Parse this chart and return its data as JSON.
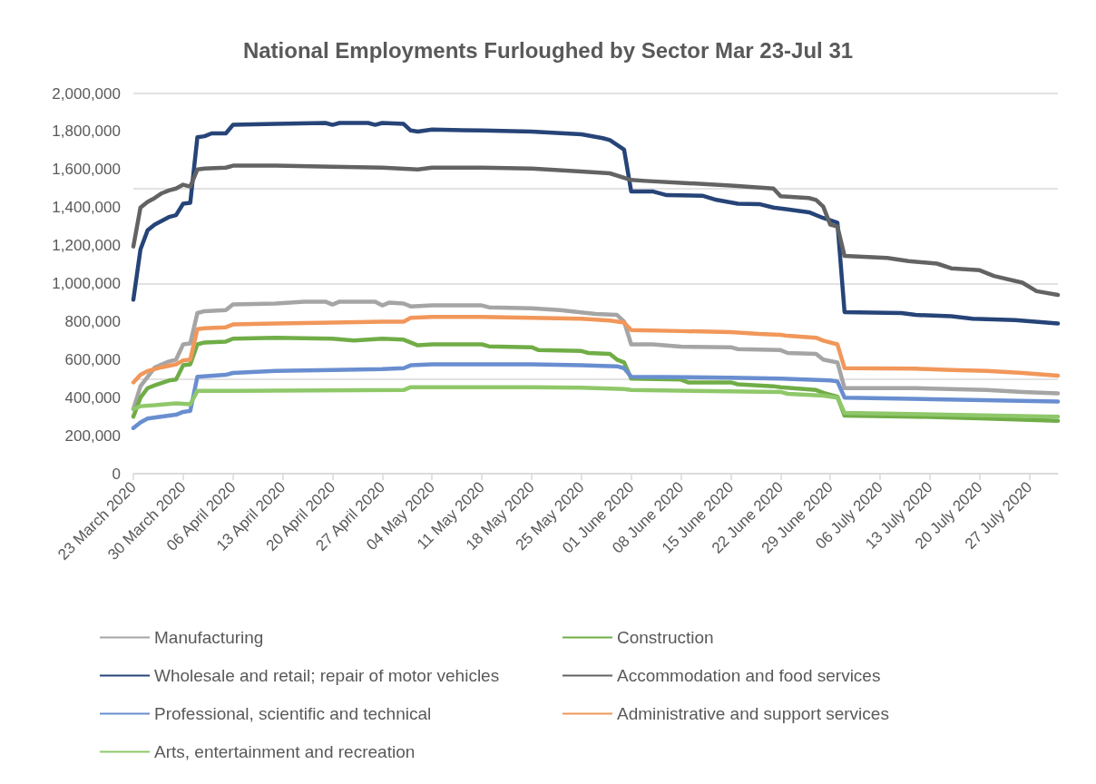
{
  "chart_data": {
    "type": "line",
    "title": "National Employments Furloughed by Sector Mar 23-Jul 31",
    "xlim": [
      "2020-03-23",
      "2020-07-31"
    ],
    "xticks": [
      {
        "value": "2020-03-23",
        "label": "23 March 2020"
      },
      {
        "value": "2020-03-30",
        "label": "30 March 2020"
      },
      {
        "value": "2020-04-06",
        "label": "06 April 2020"
      },
      {
        "value": "2020-04-13",
        "label": "13 April 2020"
      },
      {
        "value": "2020-04-20",
        "label": "20 April 2020"
      },
      {
        "value": "2020-04-27",
        "label": "27 April 2020"
      },
      {
        "value": "2020-05-04",
        "label": "04 May 2020"
      },
      {
        "value": "2020-05-11",
        "label": "11 May 2020"
      },
      {
        "value": "2020-05-18",
        "label": "18 May 2020"
      },
      {
        "value": "2020-05-25",
        "label": "25 May 2020"
      },
      {
        "value": "2020-06-01",
        "label": "01 June 2020"
      },
      {
        "value": "2020-06-08",
        "label": "08 June 2020"
      },
      {
        "value": "2020-06-15",
        "label": "15 June 2020"
      },
      {
        "value": "2020-06-22",
        "label": "22 June 2020"
      },
      {
        "value": "2020-06-29",
        "label": "29 June 2020"
      },
      {
        "value": "2020-07-06",
        "label": "06 July 2020"
      },
      {
        "value": "2020-07-13",
        "label": "13 July 2020"
      },
      {
        "value": "2020-07-20",
        "label": "20 July 2020"
      },
      {
        "value": "2020-07-27",
        "label": "27 July 2020"
      }
    ],
    "ylim": [
      0,
      2000000
    ],
    "yticks": [
      0,
      {
        "value": 200000,
        "label": "200,000"
      },
      {
        "value": 400000,
        "label": "400,000"
      },
      {
        "value": 600000,
        "label": "600,000"
      },
      {
        "value": 800000,
        "label": "800,000"
      },
      {
        "value": 1000000,
        "label": "1,000,000"
      },
      {
        "value": 1200000,
        "label": "1,200,000"
      },
      {
        "value": 1400000,
        "label": "1,400,000"
      },
      {
        "value": 1600000,
        "label": "1,600,000"
      },
      {
        "value": 1800000,
        "label": "1,800,000"
      },
      {
        "value": 2000000,
        "label": "2,000,000"
      }
    ],
    "grid": "y",
    "legend": "bottom",
    "marker": "none",
    "line_style": "solid",
    "series": [
      {
        "name": "Manufacturing",
        "color": "#a5a5a5",
        "x": [
          "2020-03-23",
          "2020-03-24",
          "2020-03-26",
          "2020-03-27",
          "2020-03-28",
          "2020-03-29",
          "2020-03-30",
          "2020-03-31",
          "2020-04-01",
          "2020-04-02",
          "2020-04-05",
          "2020-04-06",
          "2020-04-12",
          "2020-04-16",
          "2020-04-19",
          "2020-04-20",
          "2020-04-21",
          "2020-04-26",
          "2020-04-27",
          "2020-04-28",
          "2020-04-30",
          "2020-05-01",
          "2020-05-04",
          "2020-05-11",
          "2020-05-12",
          "2020-05-18",
          "2020-05-22",
          "2020-05-27",
          "2020-05-30",
          "2020-05-31",
          "2020-06-01",
          "2020-06-04",
          "2020-06-08",
          "2020-06-15",
          "2020-06-16",
          "2020-06-22",
          "2020-06-23",
          "2020-06-27",
          "2020-06-28",
          "2020-06-30",
          "2020-07-01",
          "2020-07-11",
          "2020-07-21",
          "2020-07-26",
          "2020-07-31"
        ],
        "values": [
          340000,
          460000,
          558000,
          575000,
          590000,
          600000,
          680000,
          685000,
          845000,
          855000,
          860000,
          890000,
          895000,
          905000,
          905000,
          890000,
          905000,
          905000,
          885000,
          900000,
          895000,
          880000,
          885000,
          885000,
          875000,
          870000,
          860000,
          840000,
          835000,
          800000,
          680000,
          680000,
          668000,
          665000,
          655000,
          650000,
          635000,
          630000,
          600000,
          585000,
          450000,
          450000,
          440000,
          430000,
          422000
        ]
      },
      {
        "name": "Construction",
        "color": "#70ad47",
        "x": [
          "2020-03-23",
          "2020-03-24",
          "2020-03-25",
          "2020-03-26",
          "2020-03-28",
          "2020-03-29",
          "2020-03-30",
          "2020-03-31",
          "2020-04-01",
          "2020-04-02",
          "2020-04-05",
          "2020-04-06",
          "2020-04-12",
          "2020-04-20",
          "2020-04-23",
          "2020-04-27",
          "2020-04-30",
          "2020-05-02",
          "2020-05-04",
          "2020-05-11",
          "2020-05-12",
          "2020-05-18",
          "2020-05-19",
          "2020-05-25",
          "2020-05-26",
          "2020-05-29",
          "2020-05-30",
          "2020-05-31",
          "2020-06-01",
          "2020-06-08",
          "2020-06-09",
          "2020-06-15",
          "2020-06-16",
          "2020-06-21",
          "2020-06-22",
          "2020-06-27",
          "2020-06-28",
          "2020-06-30",
          "2020-07-01",
          "2020-07-11",
          "2020-07-21",
          "2020-07-31"
        ],
        "values": [
          300000,
          400000,
          450000,
          465000,
          490000,
          495000,
          570000,
          575000,
          680000,
          690000,
          695000,
          710000,
          715000,
          710000,
          700000,
          710000,
          705000,
          675000,
          680000,
          680000,
          670000,
          665000,
          650000,
          645000,
          635000,
          630000,
          600000,
          585000,
          500000,
          495000,
          480000,
          480000,
          470000,
          460000,
          455000,
          440000,
          425000,
          405000,
          305000,
          300000,
          290000,
          278000
        ]
      },
      {
        "name": "Wholesale and retail; repair of motor vehicles",
        "color": "#264478",
        "x": [
          "2020-03-23",
          "2020-03-24",
          "2020-03-25",
          "2020-03-26",
          "2020-03-28",
          "2020-03-29",
          "2020-03-30",
          "2020-03-31",
          "2020-04-01",
          "2020-04-02",
          "2020-04-03",
          "2020-04-05",
          "2020-04-06",
          "2020-04-12",
          "2020-04-19",
          "2020-04-20",
          "2020-04-21",
          "2020-04-25",
          "2020-04-26",
          "2020-04-27",
          "2020-04-30",
          "2020-05-01",
          "2020-05-02",
          "2020-05-04",
          "2020-05-11",
          "2020-05-18",
          "2020-05-25",
          "2020-05-28",
          "2020-05-29",
          "2020-05-31",
          "2020-06-01",
          "2020-06-04",
          "2020-06-06",
          "2020-06-11",
          "2020-06-13",
          "2020-06-16",
          "2020-06-19",
          "2020-06-21",
          "2020-06-23",
          "2020-06-26",
          "2020-06-28",
          "2020-06-30",
          "2020-07-01",
          "2020-07-09",
          "2020-07-11",
          "2020-07-16",
          "2020-07-19",
          "2020-07-25",
          "2020-07-31"
        ],
        "values": [
          915000,
          1180000,
          1280000,
          1310000,
          1350000,
          1360000,
          1420000,
          1425000,
          1770000,
          1775000,
          1790000,
          1790000,
          1835000,
          1840000,
          1845000,
          1835000,
          1845000,
          1845000,
          1835000,
          1845000,
          1840000,
          1805000,
          1800000,
          1810000,
          1805000,
          1800000,
          1785000,
          1765000,
          1755000,
          1705000,
          1485000,
          1485000,
          1465000,
          1462000,
          1440000,
          1420000,
          1418000,
          1400000,
          1390000,
          1375000,
          1345000,
          1320000,
          850000,
          845000,
          835000,
          828000,
          815000,
          808000,
          790000
        ]
      },
      {
        "name": "Accommodation and food services",
        "color": "#636363",
        "x": [
          "2020-03-23",
          "2020-03-24",
          "2020-03-25",
          "2020-03-26",
          "2020-03-27",
          "2020-03-28",
          "2020-03-29",
          "2020-03-30",
          "2020-03-31",
          "2020-04-01",
          "2020-04-02",
          "2020-04-05",
          "2020-04-06",
          "2020-04-12",
          "2020-04-20",
          "2020-04-27",
          "2020-05-02",
          "2020-05-04",
          "2020-05-11",
          "2020-05-18",
          "2020-05-25",
          "2020-05-29",
          "2020-06-01",
          "2020-06-03",
          "2020-06-08",
          "2020-06-15",
          "2020-06-21",
          "2020-06-22",
          "2020-06-26",
          "2020-06-27",
          "2020-06-28",
          "2020-06-29",
          "2020-06-30",
          "2020-07-01",
          "2020-07-07",
          "2020-07-10",
          "2020-07-14",
          "2020-07-16",
          "2020-07-20",
          "2020-07-22",
          "2020-07-26",
          "2020-07-28",
          "2020-07-31"
        ],
        "values": [
          1195000,
          1400000,
          1430000,
          1450000,
          1475000,
          1490000,
          1500000,
          1520000,
          1510000,
          1600000,
          1605000,
          1610000,
          1620000,
          1620000,
          1615000,
          1610000,
          1600000,
          1610000,
          1610000,
          1605000,
          1590000,
          1580000,
          1545000,
          1540000,
          1530000,
          1515000,
          1500000,
          1460000,
          1450000,
          1440000,
          1405000,
          1310000,
          1300000,
          1145000,
          1135000,
          1118000,
          1105000,
          1080000,
          1070000,
          1040000,
          1005000,
          960000,
          940000
        ]
      },
      {
        "name": "Professional, scientific and technical",
        "color": "#698ed0",
        "x": [
          "2020-03-23",
          "2020-03-24",
          "2020-03-25",
          "2020-03-28",
          "2020-03-29",
          "2020-03-30",
          "2020-03-31",
          "2020-04-01",
          "2020-04-05",
          "2020-04-06",
          "2020-04-12",
          "2020-04-20",
          "2020-04-27",
          "2020-04-30",
          "2020-05-01",
          "2020-05-04",
          "2020-05-18",
          "2020-05-25",
          "2020-05-30",
          "2020-05-31",
          "2020-06-01",
          "2020-06-15",
          "2020-06-22",
          "2020-06-29",
          "2020-06-30",
          "2020-07-01",
          "2020-07-31"
        ],
        "values": [
          240000,
          270000,
          290000,
          305000,
          310000,
          325000,
          330000,
          510000,
          520000,
          530000,
          540000,
          545000,
          550000,
          555000,
          570000,
          575000,
          575000,
          570000,
          565000,
          555000,
          510000,
          505000,
          500000,
          490000,
          485000,
          400000,
          380000
        ]
      },
      {
        "name": "Administrative and support services",
        "color": "#f1975a",
        "x": [
          "2020-03-23",
          "2020-03-24",
          "2020-03-25",
          "2020-03-27",
          "2020-03-29",
          "2020-03-30",
          "2020-03-31",
          "2020-04-01",
          "2020-04-02",
          "2020-04-05",
          "2020-04-06",
          "2020-04-12",
          "2020-04-20",
          "2020-04-27",
          "2020-04-30",
          "2020-05-01",
          "2020-05-04",
          "2020-05-11",
          "2020-05-18",
          "2020-05-25",
          "2020-05-29",
          "2020-05-31",
          "2020-06-01",
          "2020-06-08",
          "2020-06-15",
          "2020-06-19",
          "2020-06-22",
          "2020-06-23",
          "2020-06-27",
          "2020-06-28",
          "2020-06-30",
          "2020-07-01",
          "2020-07-11",
          "2020-07-16",
          "2020-07-21",
          "2020-07-26",
          "2020-07-31"
        ],
        "values": [
          480000,
          520000,
          540000,
          560000,
          575000,
          595000,
          600000,
          760000,
          765000,
          770000,
          785000,
          790000,
          795000,
          800000,
          800000,
          820000,
          825000,
          825000,
          820000,
          815000,
          805000,
          795000,
          755000,
          750000,
          745000,
          735000,
          730000,
          725000,
          715000,
          700000,
          680000,
          555000,
          552000,
          545000,
          540000,
          530000,
          515000
        ]
      },
      {
        "name": "Arts, entertainment and recreation",
        "color": "#8fc86a",
        "x": [
          "2020-03-23",
          "2020-03-24",
          "2020-03-26",
          "2020-03-29",
          "2020-03-31",
          "2020-04-01",
          "2020-04-30",
          "2020-05-01",
          "2020-05-18",
          "2020-05-25",
          "2020-05-31",
          "2020-06-01",
          "2020-06-22",
          "2020-06-23",
          "2020-06-28",
          "2020-06-30",
          "2020-07-01",
          "2020-07-31"
        ],
        "values": [
          340000,
          355000,
          360000,
          370000,
          365000,
          435000,
          440000,
          455000,
          455000,
          452000,
          445000,
          440000,
          430000,
          420000,
          410000,
          400000,
          320000,
          300000
        ]
      }
    ]
  }
}
